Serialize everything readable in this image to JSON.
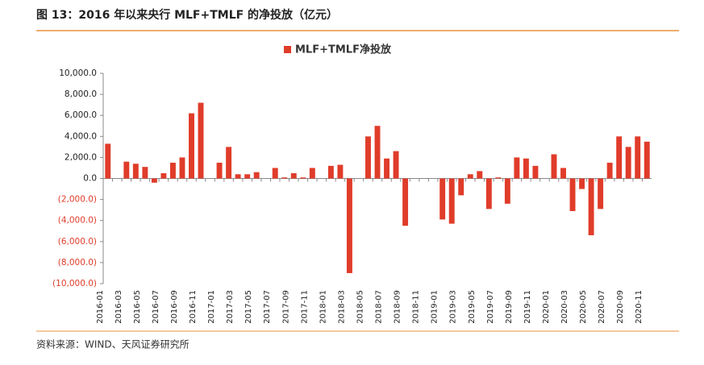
{
  "chart_data": {
    "type": "bar",
    "title": "图 13：2016 年以来央行 MLF+TMLF 的净投放（亿元）",
    "source": "资料来源：WIND、天风证券研究所",
    "categories": [
      "2016-01",
      null,
      "2016-03",
      null,
      "2016-05",
      null,
      "2016-07",
      null,
      "2016-09",
      null,
      "2016-11",
      null,
      "2017-01",
      null,
      "2017-03",
      null,
      "2017-05",
      null,
      "2017-07",
      null,
      "2017-09",
      null,
      "2017-11",
      null,
      "2018-01",
      null,
      "2018-03",
      null,
      "2018-05",
      null,
      "2018-07",
      null,
      "2018-09",
      null,
      "2018-11",
      null,
      "2019-01",
      null,
      "2019-03",
      null,
      "2019-05",
      null,
      "2019-07",
      null,
      "2019-09",
      null,
      "2019-11",
      null,
      "2020-01",
      null,
      "2020-03",
      null,
      "2020-05",
      null,
      "2020-07",
      null,
      "2020-09",
      null,
      "2020-11"
    ],
    "series": [
      {
        "name": "MLF+TMLF净投放",
        "color": "#e03c2a",
        "values": [
          3300,
          0,
          1600,
          1400,
          1100,
          -400,
          500,
          1500,
          2000,
          6200,
          7200,
          0,
          1500,
          3000,
          400,
          400,
          600,
          0,
          1000,
          100,
          500,
          100,
          1000,
          0,
          1200,
          1300,
          -9000,
          0,
          4000,
          5000,
          1900,
          2600,
          -4500,
          0,
          0,
          0,
          -3900,
          -4300,
          -1600,
          400,
          700,
          -2900,
          100,
          -2400,
          2000,
          1900,
          1200,
          0,
          2300,
          1000,
          -3100,
          -1000,
          -5400,
          -2900,
          1500,
          4000,
          3000,
          4000,
          3500
        ]
      }
    ],
    "ylim": [
      -10000,
      10000
    ],
    "yticks": [
      {
        "value": 10000,
        "label": "10,000.0"
      },
      {
        "value": 8000,
        "label": "8,000.0"
      },
      {
        "value": 6000,
        "label": "6,000.0"
      },
      {
        "value": 4000,
        "label": "4,000.0"
      },
      {
        "value": 2000,
        "label": "2,000.0"
      },
      {
        "value": 0,
        "label": "0.0"
      },
      {
        "value": -2000,
        "label": "(2,000.0)"
      },
      {
        "value": -4000,
        "label": "(4,000.0)"
      },
      {
        "value": -6000,
        "label": "(6,000.0)"
      },
      {
        "value": -8000,
        "label": "(8,000.0)"
      },
      {
        "value": -10000,
        "label": "(10,000.0)"
      }
    ],
    "negative_tick_color": "#e03c2a",
    "legend": "top"
  }
}
